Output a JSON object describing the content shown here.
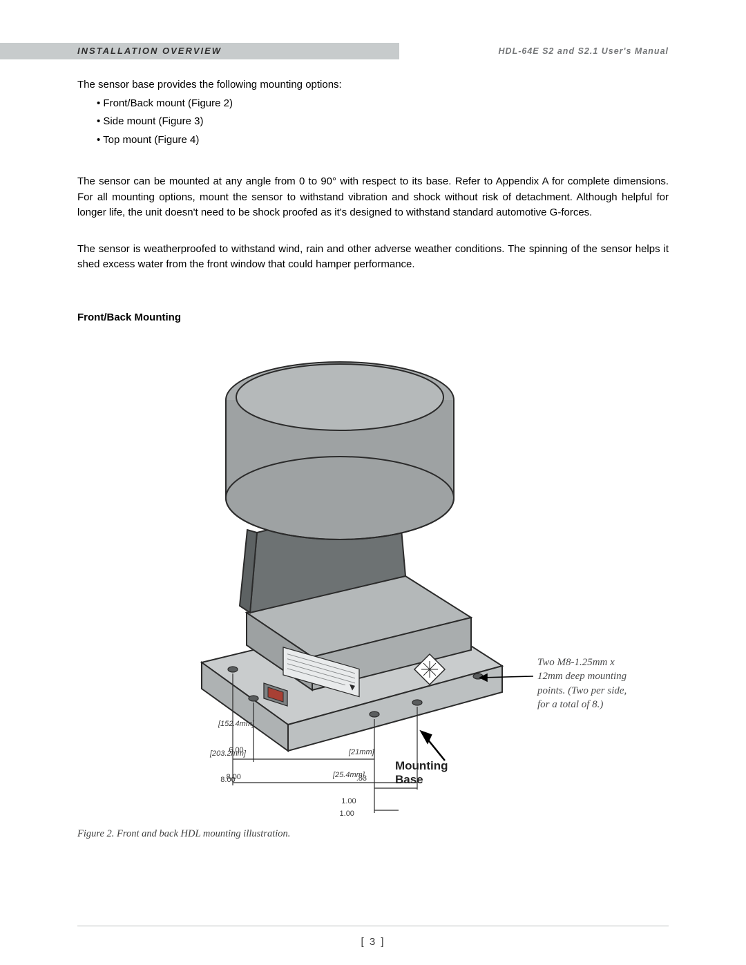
{
  "header": {
    "section_title": "INSTALLATION OVERVIEW",
    "doc_title": "HDL-64E S2 and S2.1 User's Manual"
  },
  "text": {
    "intro": "The sensor base provides the following mounting options:",
    "bullets": [
      "Front/Back mount (Figure 2)",
      "Side mount (Figure 3)",
      "Top mount (Figure 4)"
    ],
    "para1": "The sensor can be mounted at any angle from 0 to 90° with respect to its base. Refer to Appendix A for complete dimensions. For all mounting options, mount the sensor to withstand vibration and shock without risk of detachment. Although helpful for longer life, the unit doesn't need to be shock proofed as it's designed to withstand standard automotive G-forces.",
    "para2": "The sensor is weatherproofed to withstand wind, rain and other adverse weather conditions. The spinning of the sensor helps it shed excess water from the front window that could hamper performance.",
    "section_heading": "Front/Back Mounting",
    "figure_caption": "Figure 2. Front and back HDL mounting illustration.",
    "page_number": "[ 3 ]"
  },
  "figure": {
    "callout_mount_spec": "Two M8-1.25mm x\n12mm deep mounting\npoints. (Two per side,\nfor a total of 8.)",
    "mounting_base_label_l1": "Mounting",
    "mounting_base_label_l2": "Base",
    "dimensions": {
      "d1_mm": "[152.4mm]",
      "d1_in": "6.00",
      "d2_mm": "[203.2mm]",
      "d2_in": "8.00",
      "d3_in": "8.00",
      "d4_mm": "[21mm]",
      "d4_in": ".83",
      "d5_mm": "[25.4mm]",
      "d5_in": "1.00",
      "d6_in": "1.00"
    },
    "colors": {
      "body_fill": "#9ea2a3",
      "body_stroke": "#2b2b2b",
      "base_fill": "#c9cccd",
      "window_fill": "#6d7273",
      "arrow_stroke": "#000000"
    }
  }
}
